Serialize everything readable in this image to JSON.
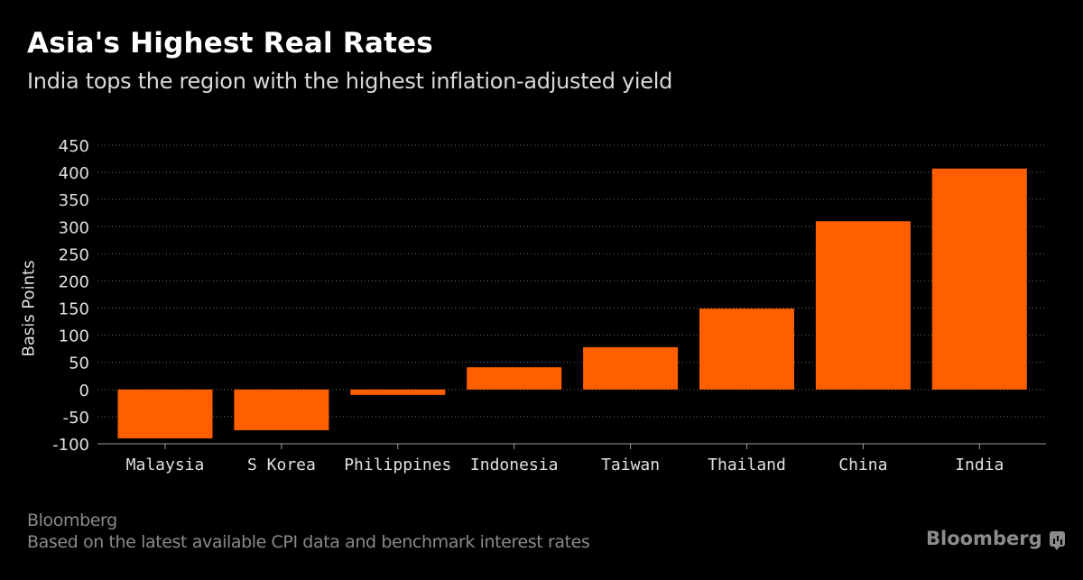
{
  "header": {
    "title": "Asia's Highest Real Rates",
    "subtitle": "India tops the region with the highest inflation-adjusted yield"
  },
  "footer": {
    "source": "Bloomberg",
    "note": "Based on the latest available CPI data and benchmark interest rates",
    "logo_text": "Bloomberg",
    "logo_icon": "bloomberg-chart-icon"
  },
  "colors": {
    "bar": "#ff5f00",
    "background": "#000000",
    "grid": "#6e6e6e",
    "axis": "#9a9aa4"
  },
  "chart_data": {
    "type": "bar",
    "title": "Asia's Highest Real Rates",
    "subtitle": "India tops the region with the highest inflation-adjusted yield",
    "xlabel": "",
    "ylabel": "Basis Points",
    "categories": [
      "Malaysia",
      "S Korea",
      "Philippines",
      "Indonesia",
      "Taiwan",
      "Thailand",
      "China",
      "India"
    ],
    "values": [
      -90,
      -75,
      -10,
      41,
      78,
      149,
      310,
      407
    ],
    "ylim": [
      -100,
      450
    ],
    "yticks": [
      450,
      400,
      350,
      300,
      250,
      200,
      150,
      100,
      50,
      0,
      -50,
      -100
    ],
    "grid": true,
    "legend": "none"
  }
}
